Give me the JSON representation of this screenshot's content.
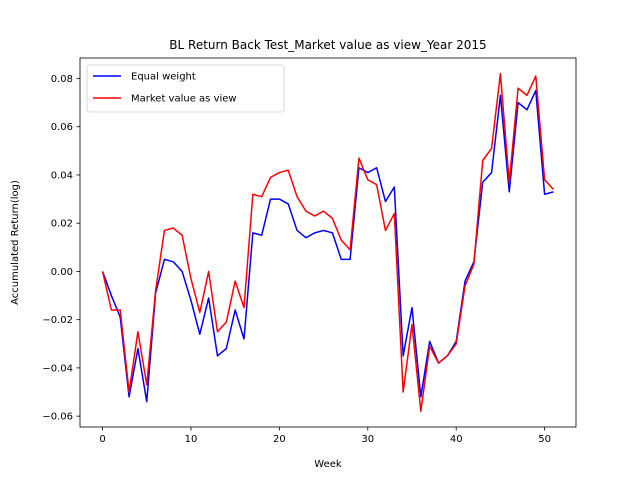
{
  "chart_data": {
    "type": "line",
    "title": "BL Return Back Test_Market value as view_Year 2015",
    "xlabel": "Week",
    "ylabel": "Accumulated Return(log)",
    "xlim": [
      -2.55,
      53.55
    ],
    "ylim": [
      -0.0645,
      0.0885
    ],
    "xticks": [
      0,
      10,
      20,
      30,
      40,
      50
    ],
    "xtick_labels": [
      "0",
      "10",
      "20",
      "30",
      "40",
      "50"
    ],
    "yticks": [
      -0.06,
      -0.04,
      -0.02,
      0.0,
      0.02,
      0.04,
      0.06,
      0.08
    ],
    "ytick_labels": [
      "−0.06",
      "−0.04",
      "−0.02",
      "0.00",
      "0.02",
      "0.04",
      "0.06",
      "0.08"
    ],
    "grid": false,
    "legend_position": "top-left",
    "x": [
      0,
      1,
      2,
      3,
      4,
      5,
      6,
      7,
      8,
      9,
      10,
      11,
      12,
      13,
      14,
      15,
      16,
      17,
      18,
      19,
      20,
      21,
      22,
      23,
      24,
      25,
      26,
      27,
      28,
      29,
      30,
      31,
      32,
      33,
      34,
      35,
      36,
      37,
      38,
      39,
      40,
      41,
      42,
      43,
      44,
      45,
      46,
      47,
      48,
      49,
      50,
      51
    ],
    "series": [
      {
        "name": "Equal weight",
        "color": "#0000ff",
        "values": [
          0.0,
          -0.01,
          -0.019,
          -0.052,
          -0.032,
          -0.054,
          -0.009,
          0.005,
          0.004,
          0.0,
          -0.012,
          -0.026,
          -0.011,
          -0.035,
          -0.032,
          -0.016,
          -0.028,
          0.016,
          0.015,
          0.03,
          0.03,
          0.028,
          0.017,
          0.014,
          0.016,
          0.017,
          0.016,
          0.005,
          0.005,
          0.043,
          0.041,
          0.043,
          0.029,
          0.035,
          -0.035,
          -0.015,
          -0.052,
          -0.029,
          -0.038,
          -0.035,
          -0.029,
          -0.004,
          0.004,
          0.037,
          0.041,
          0.073,
          0.033,
          0.07,
          0.067,
          0.075,
          0.032,
          0.033
        ]
      },
      {
        "name": "Market value as view",
        "color": "#ff0000",
        "values": [
          0.0,
          -0.016,
          -0.016,
          -0.05,
          -0.025,
          -0.047,
          -0.008,
          0.017,
          0.018,
          0.015,
          -0.003,
          -0.017,
          0.0,
          -0.025,
          -0.021,
          -0.004,
          -0.015,
          0.032,
          0.031,
          0.039,
          0.041,
          0.042,
          0.031,
          0.025,
          0.023,
          0.025,
          0.022,
          0.013,
          0.009,
          0.047,
          0.038,
          0.036,
          0.017,
          0.024,
          -0.05,
          -0.022,
          -0.058,
          -0.031,
          -0.038,
          -0.035,
          -0.03,
          -0.006,
          0.003,
          0.046,
          0.051,
          0.082,
          0.037,
          0.076,
          0.073,
          0.081,
          0.038,
          0.034
        ]
      }
    ]
  }
}
